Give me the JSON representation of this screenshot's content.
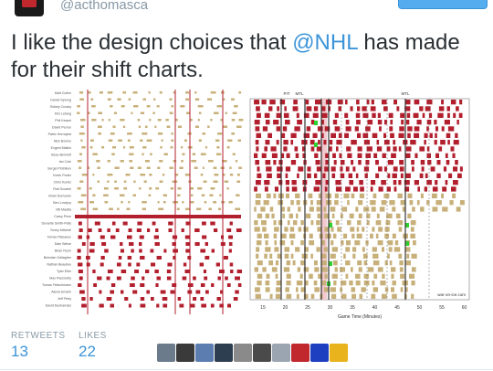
{
  "header": {
    "handle": "@acthomasca"
  },
  "tweet": {
    "text_before": "I like the design choices that ",
    "mention": "@NHL",
    "text_after": " has made for their shift charts."
  },
  "chart": {
    "players": [
      "Matt Cullen",
      "Daniel Sprong",
      "Sidney Crosby",
      "Kris Letang",
      "Phil Kessel",
      "David Perron",
      "Patric Hornqvist",
      "Nick Bonino",
      "Evgeni Malkin",
      "Beau Bennett",
      "Ian Cole",
      "Sergei Plotnikov",
      "Kevin Porter",
      "Chris Kunitz",
      "Rob Scuderi",
      "Brian Dumoulin",
      "Ben Lovejoy",
      "Olli Maatta",
      "Carey Price",
      "Devante Smith-Pelly",
      "Torrey Mitchell",
      "Tomas Plekanec",
      "Dale Weise",
      "Brian Flynn",
      "Brendan Gallagher",
      "Nathan Beaulieu",
      "Tyler Eller",
      "Max Pacioretty",
      "Tomas Fleischmann",
      "Alexei Emelin",
      "Jeff Petry",
      "David Desharnais"
    ],
    "period_labels": [
      "PIT",
      "MTL",
      "MTL"
    ],
    "x_ticks": [
      "15",
      "20",
      "25",
      "30",
      "35",
      "40",
      "45",
      "50",
      "55",
      "60"
    ],
    "x_label": "Game Time (Minutes)",
    "watermark": "war-on-ice.com",
    "colors": {
      "pit": "#c8b07a",
      "mtl": "#b21f2d"
    }
  },
  "stats": {
    "retweets_label": "RETWEETS",
    "retweets": "13",
    "likes_label": "LIKES",
    "likes": "22"
  },
  "likers": [
    {
      "icon": "user-avatar",
      "color": "#6b7b8c"
    },
    {
      "icon": "user-avatar",
      "color": "#3a3a3a"
    },
    {
      "icon": "user-avatar",
      "color": "#5c7db0"
    },
    {
      "icon": "user-avatar",
      "color": "#2c3e50"
    },
    {
      "icon": "user-avatar",
      "color": "#8a8a8a"
    },
    {
      "icon": "user-avatar",
      "color": "#4a4a4a"
    },
    {
      "icon": "user-avatar",
      "color": "#9aa5b1"
    },
    {
      "icon": "user-avatar",
      "color": "#c0282e"
    },
    {
      "icon": "user-avatar",
      "color": "#1e3fbf"
    },
    {
      "icon": "user-avatar",
      "color": "#e8b31c"
    }
  ]
}
